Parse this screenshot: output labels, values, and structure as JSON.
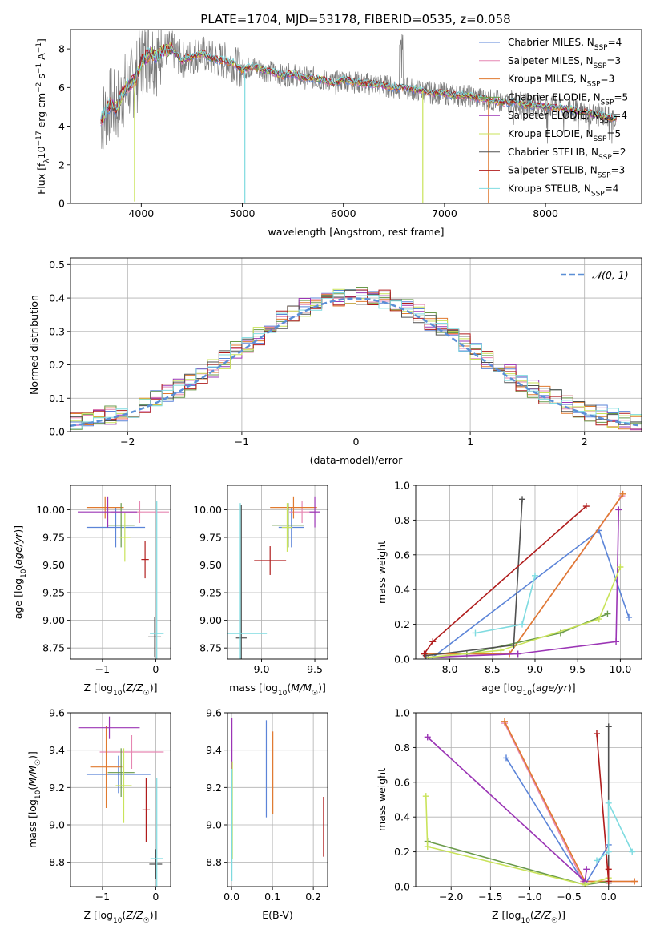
{
  "figure_title": "PLATE=1704, MJD=53178, FIBERID=0535, z=0.058",
  "model_colors": [
    "#5b84d8",
    "#e686b2",
    "#e07a2f",
    "#6a9a4a",
    "#9b35b5",
    "#c9e35a",
    "#505050",
    "#b01c1c",
    "#7fdbe0"
  ],
  "chart_data": [
    {
      "id": "spectrum",
      "type": "line",
      "title": "PLATE=1704, MJD=53178, FIBERID=0535, z=0.058",
      "xlabel": "wavelength [Angstrom, rest frame]",
      "ylabel": "Flux [f_λ10⁻¹⁷ erg cm⁻² s⁻¹ A⁻¹]",
      "xlim": [
        3300,
        8950
      ],
      "ylim": [
        0,
        9
      ],
      "xticks": [
        "4000",
        "5000",
        "6000",
        "7000",
        "8000"
      ],
      "yticks": [
        "0",
        "2",
        "4",
        "6",
        "8"
      ],
      "grid": false,
      "legend_position": "top-right",
      "legend": [
        {
          "text": "Chabrier MILES, N",
          "sub": "SSP",
          "tail": "=4"
        },
        {
          "text": "Salpeter MILES, N",
          "sub": "SSP",
          "tail": "=3"
        },
        {
          "text": "Kroupa MILES, N",
          "sub": "SSP",
          "tail": "=3"
        },
        {
          "text": "Chabrier ELODIE, N",
          "sub": "SSP",
          "tail": "=5"
        },
        {
          "text": "Salpeter ELODIE, N",
          "sub": "SSP",
          "tail": "=4"
        },
        {
          "text": "Kroupa ELODIE, N",
          "sub": "SSP",
          "tail": "=5"
        },
        {
          "text": "Chabrier STELIB, N",
          "sub": "SSP",
          "tail": "=2"
        },
        {
          "text": "Salpeter STELIB, N",
          "sub": "SSP",
          "tail": "=3"
        },
        {
          "text": "Kroupa STELIB, N",
          "sub": "SSP",
          "tail": "=4"
        }
      ],
      "continuum": {
        "x": [
          3600,
          3650,
          3700,
          3750,
          3800,
          3850,
          3900,
          3950,
          4000,
          4050,
          4100,
          4150,
          4200,
          4300,
          4400,
          4500,
          4600,
          4700,
          4800,
          4900,
          5000,
          5100,
          5200,
          5300,
          5400,
          5500,
          5600,
          5700,
          5800,
          5900,
          6000,
          6100,
          6200,
          6300,
          6400,
          6500,
          6600,
          6700,
          6800,
          6900,
          7000,
          7100,
          7200,
          7300,
          7400,
          7500,
          7600,
          7700,
          7800,
          7900,
          8000,
          8100,
          8200,
          8300,
          8400,
          8500,
          8600,
          8700
        ],
        "y": [
          4.3,
          4.7,
          5.2,
          4.9,
          5.5,
          6.0,
          6.2,
          6.5,
          7.3,
          7.6,
          7.8,
          7.5,
          7.9,
          8.0,
          7.4,
          7.6,
          7.8,
          7.5,
          7.4,
          7.3,
          6.9,
          7.1,
          6.9,
          6.8,
          6.6,
          6.7,
          6.5,
          6.5,
          6.4,
          6.2,
          6.4,
          6.3,
          6.2,
          6.2,
          6.1,
          6.0,
          6.0,
          5.9,
          5.8,
          5.7,
          5.7,
          5.6,
          5.6,
          5.5,
          5.4,
          5.3,
          5.2,
          5.3,
          5.1,
          5.1,
          5.0,
          5.0,
          4.9,
          4.8,
          4.7,
          4.6,
          4.5,
          4.4
        ]
      },
      "features": [
        {
          "x": 3933,
          "depth": 6.3,
          "color": "#c9e35a"
        },
        {
          "x": 5025,
          "depth": 7.0,
          "color": "#7fdbe0"
        },
        {
          "x": 6785,
          "depth": 6.0,
          "color": "#c9e35a"
        },
        {
          "x": 7435,
          "depth": 5.5,
          "color": "#e07a2f"
        }
      ]
    },
    {
      "id": "residuals",
      "type": "histogram",
      "xlabel": "(data-model)/error",
      "ylabel": "Normed distribution",
      "xlim": [
        -2.5,
        2.5
      ],
      "ylim": [
        0,
        0.52
      ],
      "xticks": [
        "−2",
        "−1",
        "0",
        "1",
        "2"
      ],
      "yticks": [
        "0.0",
        "0.1",
        "0.2",
        "0.3",
        "0.4",
        "0.5"
      ],
      "grid": true,
      "legend_position": "top-right",
      "legend": "𝒩(0, 1)",
      "bin_width": 0.1
    },
    {
      "id": "age_vs_z",
      "type": "errorbar",
      "xlabel": "Z [log₁₀(Z/Z☉)]",
      "ylabel": "age  [log₁₀(age/yr)]",
      "xlim": [
        -1.6,
        0.28
      ],
      "ylim": [
        8.65,
        10.22
      ],
      "xticks": [
        "−1",
        "0"
      ],
      "yticks": [
        "8.75",
        "9.00",
        "9.25",
        "9.50",
        "9.75",
        "10.00"
      ],
      "grid": true,
      "points": [
        {
          "c": 0,
          "x": -0.75,
          "y": 9.84,
          "xerr": 0.55,
          "yerr": 0.18
        },
        {
          "c": 1,
          "x": -0.3,
          "y": 9.98,
          "xerr": 0.55,
          "yerr": 0.1
        },
        {
          "c": 2,
          "x": -0.95,
          "y": 10.02,
          "xerr": 0.35,
          "yerr": 0.1
        },
        {
          "c": 3,
          "x": -0.65,
          "y": 9.86,
          "xerr": 0.25,
          "yerr": 0.2
        },
        {
          "c": 4,
          "x": -0.9,
          "y": 9.98,
          "xerr": 0.55,
          "yerr": 0.14
        },
        {
          "c": 5,
          "x": -0.58,
          "y": 9.75,
          "xerr": 0.1,
          "yerr": 0.22
        },
        {
          "c": 6,
          "x": -0.02,
          "y": 8.85,
          "xerr": 0.12,
          "yerr": 0.18
        },
        {
          "c": 7,
          "x": -0.2,
          "y": 9.55,
          "xerr": 0.07,
          "yerr": 0.17
        },
        {
          "c": 8,
          "x": 0.02,
          "y": 8.88,
          "xerr": 0.13,
          "yerr": 1.2
        }
      ]
    },
    {
      "id": "age_vs_mass",
      "type": "errorbar",
      "xlabel": "mass [log₁₀(M/M☉)]",
      "ylabel": "",
      "xlim": [
        8.68,
        9.62
      ],
      "ylim": [
        8.65,
        10.22
      ],
      "xticks": [
        "9.0",
        "9.5"
      ],
      "yticks": [
        "8.75",
        "9.00",
        "9.25",
        "9.50",
        "9.75",
        "10.00"
      ],
      "grid": true,
      "points": [
        {
          "c": 0,
          "x": 9.28,
          "y": 9.84,
          "xerr": 0.12,
          "yerr": 0.18
        },
        {
          "c": 1,
          "x": 9.38,
          "y": 9.98,
          "xerr": 0.12,
          "yerr": 0.1
        },
        {
          "c": 2,
          "x": 9.3,
          "y": 10.02,
          "xerr": 0.22,
          "yerr": 0.1
        },
        {
          "c": 3,
          "x": 9.25,
          "y": 9.86,
          "xerr": 0.15,
          "yerr": 0.2
        },
        {
          "c": 4,
          "x": 9.5,
          "y": 9.98,
          "xerr": 0.05,
          "yerr": 0.14
        },
        {
          "c": 5,
          "x": 9.24,
          "y": 9.84,
          "xerr": 0.05,
          "yerr": 0.22
        },
        {
          "c": 6,
          "x": 8.81,
          "y": 8.84,
          "xerr": 0.05,
          "yerr": 1.2
        },
        {
          "c": 7,
          "x": 9.08,
          "y": 9.54,
          "xerr": 0.15,
          "yerr": 0.13
        },
        {
          "c": 8,
          "x": 8.8,
          "y": 8.88,
          "xerr": 0.25,
          "yerr": 1.18
        }
      ]
    },
    {
      "id": "weight_vs_age",
      "type": "line",
      "xlabel": "age  [log₁₀(age/yr)]",
      "ylabel": "mass weight",
      "xlim": [
        7.6,
        10.25
      ],
      "ylim": [
        0,
        1.0
      ],
      "xticks": [
        "8.0",
        "8.5",
        "9.0",
        "9.5",
        "10.0"
      ],
      "yticks": [
        "0.0",
        "0.2",
        "0.4",
        "0.6",
        "0.8",
        "1.0"
      ],
      "grid": true,
      "series": [
        {
          "c": 0,
          "x": [
            7.8,
            9.75,
            10.1
          ],
          "y": [
            0.01,
            0.74,
            0.24
          ]
        },
        {
          "c": 1,
          "x": [
            7.7,
            8.7,
            10.02
          ],
          "y": [
            0.03,
            0.03,
            0.94
          ]
        },
        {
          "c": 2,
          "x": [
            7.7,
            8.7,
            10.03
          ],
          "y": [
            0.03,
            0.03,
            0.95
          ]
        },
        {
          "c": 3,
          "x": [
            8.2,
            9.3,
            9.85
          ],
          "y": [
            0.03,
            0.15,
            0.26
          ]
        },
        {
          "c": 4,
          "x": [
            7.75,
            8.8,
            9.95,
            9.98
          ],
          "y": [
            0.01,
            0.03,
            0.1,
            0.86
          ]
        },
        {
          "c": 5,
          "x": [
            7.75,
            8.6,
            9.75,
            10.0
          ],
          "y": [
            0.01,
            0.05,
            0.23,
            0.53
          ]
        },
        {
          "c": 6,
          "x": [
            7.72,
            8.75,
            8.85
          ],
          "y": [
            0.02,
            0.08,
            0.92
          ]
        },
        {
          "c": 7,
          "x": [
            7.7,
            7.8,
            9.6
          ],
          "y": [
            0.03,
            0.1,
            0.88
          ]
        },
        {
          "c": 8,
          "x": [
            8.3,
            8.85,
            9.0
          ],
          "y": [
            0.15,
            0.2,
            0.48
          ]
        }
      ]
    },
    {
      "id": "mass_vs_z",
      "type": "errorbar",
      "xlabel": "Z [log₁₀(Z/Z☉)]",
      "ylabel": "mass [log₁₀(M/M☉)]",
      "xlim": [
        -1.6,
        0.28
      ],
      "ylim": [
        8.67,
        9.6
      ],
      "xticks": [
        "−1",
        "0"
      ],
      "yticks": [
        "8.8",
        "9.0",
        "9.2",
        "9.4",
        "9.6"
      ],
      "grid": true,
      "points": [
        {
          "c": 0,
          "x": -0.7,
          "y": 9.27,
          "xerr": 0.6,
          "yerr": 0.1
        },
        {
          "c": 1,
          "x": -0.45,
          "y": 9.39,
          "xerr": 0.6,
          "yerr": 0.09
        },
        {
          "c": 2,
          "x": -0.93,
          "y": 9.31,
          "xerr": 0.3,
          "yerr": 0.22
        },
        {
          "c": 3,
          "x": -0.65,
          "y": 9.28,
          "xerr": 0.25,
          "yerr": 0.13
        },
        {
          "c": 4,
          "x": -0.87,
          "y": 9.52,
          "xerr": 0.57,
          "yerr": 0.06
        },
        {
          "c": 5,
          "x": -0.6,
          "y": 9.21,
          "xerr": 0.15,
          "yerr": 0.2
        },
        {
          "c": 6,
          "x": 0.0,
          "y": 8.79,
          "xerr": 0.12,
          "yerr": 0.08
        },
        {
          "c": 7,
          "x": -0.18,
          "y": 9.08,
          "xerr": 0.07,
          "yerr": 0.17
        },
        {
          "c": 8,
          "x": 0.02,
          "y": 8.82,
          "xerr": 0.12,
          "yerr": 0.43
        }
      ]
    },
    {
      "id": "mass_vs_ebv",
      "type": "errorbar",
      "xlabel": "E(B-V)",
      "ylabel": "",
      "xlim": [
        -0.01,
        0.235
      ],
      "ylim": [
        8.67,
        9.6
      ],
      "xticks": [
        "0.0",
        "0.1",
        "0.2"
      ],
      "yticks": [
        "8.8",
        "9.0",
        "9.2",
        "9.4",
        "9.6"
      ],
      "grid": true,
      "points": [
        {
          "c": 0,
          "x": 0.085,
          "y": 9.3,
          "xerr": 0,
          "yerr": 0.26
        },
        {
          "c": 1,
          "x": 0.1,
          "y": 9.32,
          "xerr": 0,
          "yerr": 0.18
        },
        {
          "c": 2,
          "x": 0.101,
          "y": 9.28,
          "xerr": 0,
          "yerr": 0.22
        },
        {
          "c": 3,
          "x": 0.0,
          "y": 9.05,
          "xerr": 0,
          "yerr": 0.3
        },
        {
          "c": 4,
          "x": 0.001,
          "y": 9.4,
          "xerr": 0,
          "yerr": 0.17
        },
        {
          "c": 5,
          "x": 0.002,
          "y": 9.08,
          "xerr": 0,
          "yerr": 0.26
        },
        {
          "c": 6,
          "x": 0.0,
          "y": 8.85,
          "xerr": 0,
          "yerr": 0.15
        },
        {
          "c": 7,
          "x": 0.225,
          "y": 8.99,
          "xerr": 0,
          "yerr": 0.16
        },
        {
          "c": 8,
          "x": 0.001,
          "y": 9.0,
          "xerr": 0,
          "yerr": 0.3
        }
      ]
    },
    {
      "id": "weight_vs_z",
      "type": "line",
      "xlabel": "Z [log₁₀(Z/Z☉)]",
      "ylabel": "mass weight",
      "xlim": [
        -2.45,
        0.42
      ],
      "ylim": [
        0,
        1.0
      ],
      "xticks": [
        "−2.0",
        "−1.5",
        "−1.0",
        "−0.5",
        "0.0"
      ],
      "yticks": [
        "0.0",
        "0.2",
        "0.4",
        "0.6",
        "0.8",
        "1.0"
      ],
      "grid": true,
      "series": [
        {
          "c": 0,
          "x": [
            -1.3,
            -0.3,
            0.0
          ],
          "y": [
            0.74,
            0.01,
            0.24
          ]
        },
        {
          "c": 1,
          "x": [
            -1.32,
            -0.32,
            0.33
          ],
          "y": [
            0.94,
            0.03,
            0.03
          ]
        },
        {
          "c": 2,
          "x": [
            -1.32,
            -0.3,
            0.33
          ],
          "y": [
            0.95,
            0.03,
            0.03
          ]
        },
        {
          "c": 3,
          "x": [
            -2.3,
            -0.3,
            0.0
          ],
          "y": [
            0.26,
            0.01,
            0.03
          ]
        },
        {
          "c": 4,
          "x": [
            -2.3,
            -0.3,
            -0.28
          ],
          "y": [
            0.86,
            0.03,
            0.1
          ]
        },
        {
          "c": 5,
          "x": [
            -2.32,
            -2.3,
            -0.3,
            0.0
          ],
          "y": [
            0.52,
            0.23,
            0.01,
            0.05
          ]
        },
        {
          "c": 6,
          "x": [
            0.0,
            0.0
          ],
          "y": [
            0.02,
            0.92
          ]
        },
        {
          "c": 7,
          "x": [
            -0.15,
            0.0,
            0.0
          ],
          "y": [
            0.88,
            0.03,
            0.1
          ]
        },
        {
          "c": 8,
          "x": [
            -0.15,
            0.0,
            0.0,
            0.3
          ],
          "y": [
            0.15,
            0.2,
            0.48,
            0.2
          ]
        }
      ]
    }
  ]
}
